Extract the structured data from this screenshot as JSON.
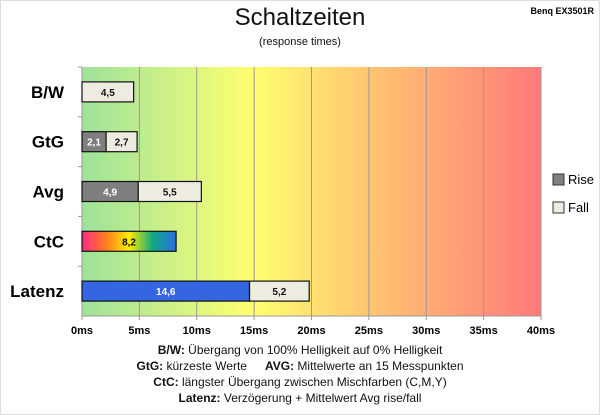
{
  "chart_data": {
    "type": "bar",
    "orientation": "horizontal",
    "stacked": true,
    "title": "Schaltzeiten",
    "subtitle": "(response times)",
    "model": "Benq EX3501R",
    "categories": [
      "B/W",
      "GtG",
      "Avg",
      "CtC",
      "Latenz"
    ],
    "series": [
      {
        "name": "Rise",
        "color": "#7f7f7f",
        "values": [
          null,
          2.1,
          4.9,
          null,
          null
        ]
      },
      {
        "name": "Fall",
        "color": "#eeece1",
        "values": [
          4.5,
          2.7,
          5.5,
          null,
          5.2
        ]
      }
    ],
    "special_bars": [
      {
        "category": "CtC",
        "value": 8.2,
        "fill": "rainbow gradient"
      },
      {
        "category": "Latenz",
        "value": 14.6,
        "color": "#3366e0",
        "position": "before Fall"
      }
    ],
    "xlim": [
      0,
      40
    ],
    "xticks": [
      0,
      5,
      10,
      15,
      20,
      25,
      30,
      35,
      40
    ],
    "tick_suffix": "ms",
    "xtick_labels": [
      "0ms",
      "5ms",
      "10ms",
      "15ms",
      "20ms",
      "25ms",
      "30ms",
      "35ms",
      "40ms"
    ],
    "grid": true,
    "background": "green-yellow-red gradient",
    "legend": "right"
  },
  "notes": [
    {
      "key": "B/W:",
      "text": " Übergang von 100% Helligkeit auf 0% Helligkeit"
    },
    {
      "key": "GtG:",
      "text": " kürzeste  Werte",
      "key2": "AVG:",
      "text2": " Mittelwerte  an 15 Messpunkten"
    },
    {
      "key": "CtC:",
      "text": " längster Übergang  zwischen Mischfarben  (C,M,Y)"
    },
    {
      "key": "Latenz:",
      "text": " Verzögerung  + Mittelwert  Avg rise/fall"
    }
  ]
}
